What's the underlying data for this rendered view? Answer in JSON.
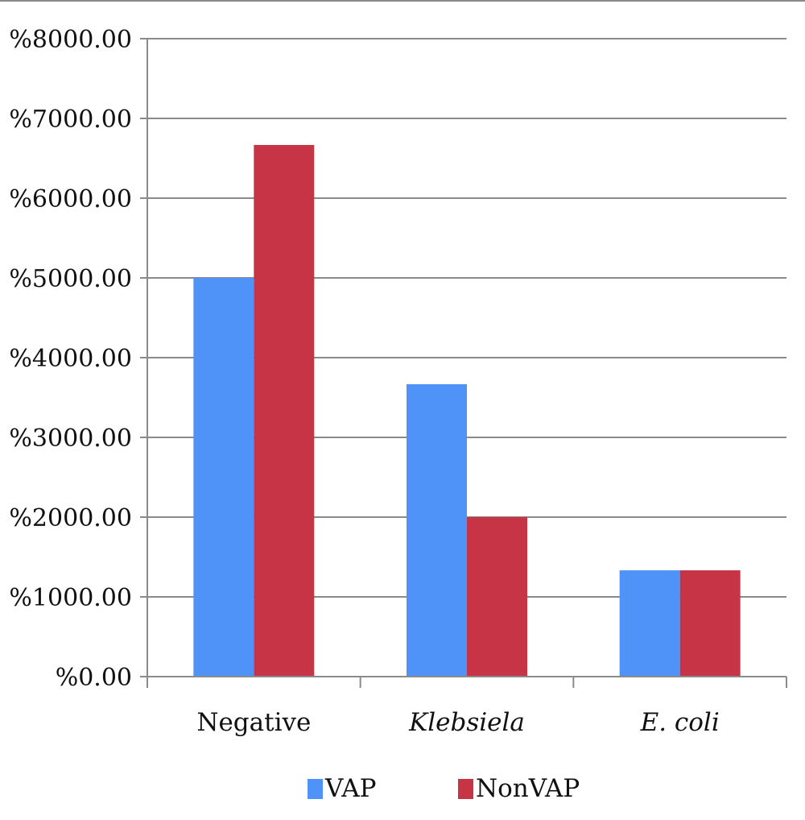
{
  "chart_data": {
    "type": "bar",
    "categories": [
      "Negative",
      "Klebsiela",
      "E. coli"
    ],
    "category_italic": [
      false,
      true,
      true
    ],
    "series": [
      {
        "name": "VAP",
        "values": [
          5000,
          3667,
          1333
        ],
        "color": "#4f93f8"
      },
      {
        "name": "NonVAP",
        "values": [
          6667,
          2000,
          1333
        ],
        "color": "#c63446"
      }
    ],
    "y_ticks": [
      "%0.00",
      "%1000.00",
      "%2000.00",
      "%3000.00",
      "%4000.00",
      "%5000.00",
      "%6000.00",
      "%7000.00",
      "%8000.00"
    ],
    "ylim": [
      0,
      8000
    ],
    "grid": true,
    "gridline_color": "#8a8a8a",
    "legend_position": "bottom"
  }
}
